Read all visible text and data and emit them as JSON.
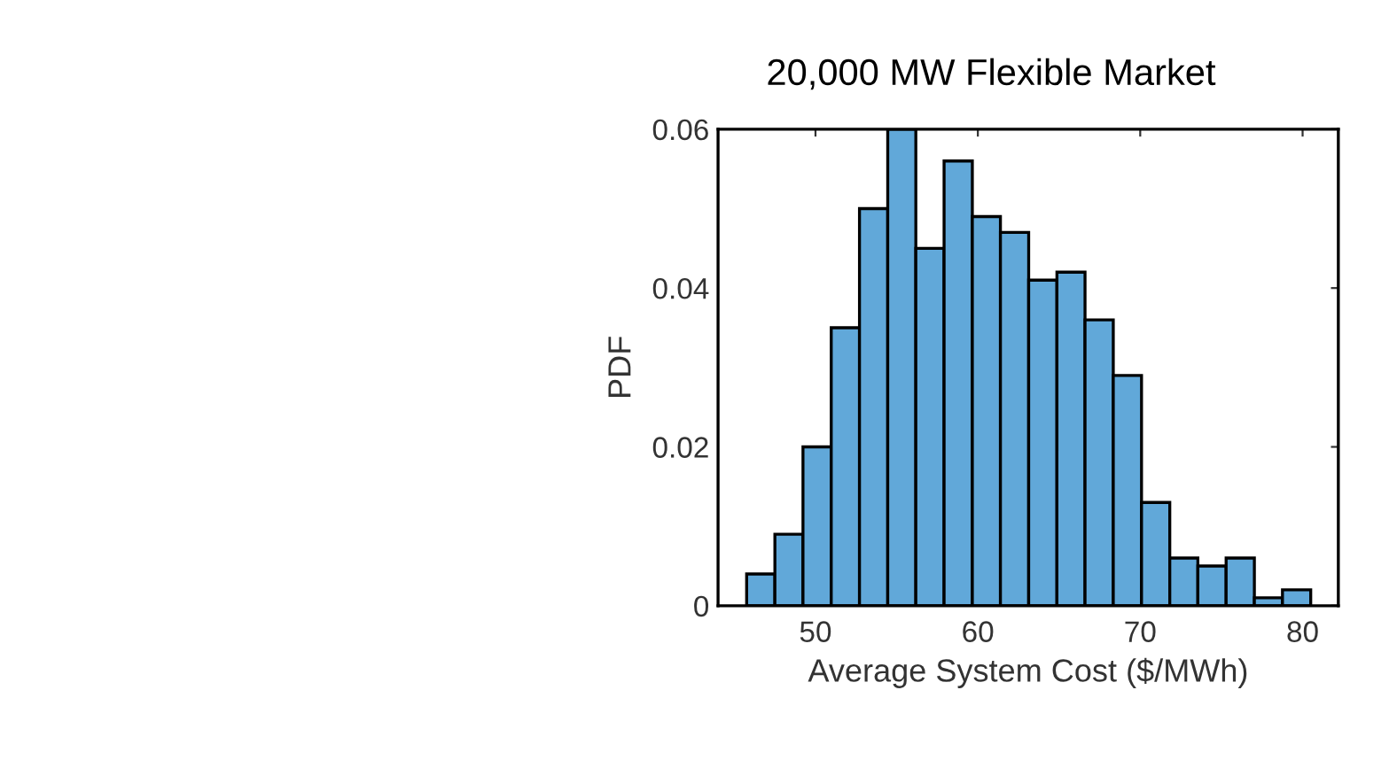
{
  "chart_data": {
    "type": "histogram",
    "title": "20,000 MW Flexible Market",
    "xlabel": "Average System Cost ($/MWh)",
    "ylabel": "PDF",
    "bins": [
      45.76,
      47.5,
      49.23,
      50.97,
      52.71,
      54.45,
      56.18,
      57.92,
      59.66,
      61.39,
      63.13,
      64.87,
      66.6,
      68.34,
      70.08,
      71.82,
      73.55,
      75.29,
      77.03,
      78.76,
      80.5
    ],
    "values": [
      0.004,
      0.009,
      0.02,
      0.035,
      0.05,
      0.06,
      0.045,
      0.056,
      0.049,
      0.047,
      0.041,
      0.042,
      0.036,
      0.029,
      0.013,
      0.006,
      0.005,
      0.006,
      0.001,
      0.002
    ],
    "color": "#61a8d9",
    "xlim": [
      44,
      82.2
    ],
    "xticks": [
      50,
      60,
      70,
      80
    ],
    "ylim": [
      0,
      0.06
    ],
    "yticks": [
      0,
      0.02,
      0.04,
      0.06
    ],
    "grid": false
  }
}
